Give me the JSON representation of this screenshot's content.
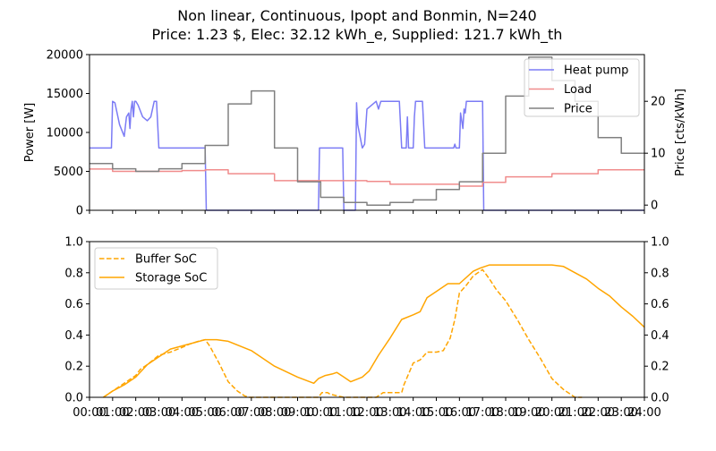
{
  "figure": {
    "title_line1": "Non linear, Continuous, Ipopt and Bonmin, N=240",
    "title_line2": "Price: 1.23 $, Elec: 32.12 kWh_e, Supplied: 121.7 kWh_th"
  },
  "colors": {
    "heat_pump": "#7b7bf5",
    "load": "#f08c8c",
    "price": "#808080",
    "soc": "#ffa500"
  },
  "chart_data": [
    {
      "type": "line",
      "ylabel": "Power [W]",
      "y2label": "Price [cts/kWh]",
      "ylim": [
        0,
        20000
      ],
      "yticks": [
        0,
        5000,
        10000,
        15000,
        20000
      ],
      "y2lim": [
        -1,
        29
      ],
      "y2ticks": [
        0,
        10,
        20
      ],
      "legend_position": "top-right",
      "series": [
        {
          "name": "Heat pump",
          "axis": "left",
          "x": [
            0,
            0.95,
            1.0,
            1.1,
            1.3,
            1.5,
            1.6,
            1.7,
            1.75,
            1.8,
            1.85,
            1.9,
            1.95,
            2.0,
            2.1,
            2.3,
            2.5,
            2.65,
            2.8,
            2.9,
            3.0,
            3.05,
            3.1,
            3.15,
            3.2,
            3.25,
            3.3,
            3.35,
            3.4,
            3.45,
            3.5,
            5.0,
            5.05,
            7.0,
            9.9,
            9.95,
            10.0,
            10.95,
            11.0,
            11.1,
            11.15,
            11.2,
            11.3,
            11.4,
            11.5,
            11.55,
            11.6,
            11.8,
            11.9,
            12.0,
            12.4,
            12.5,
            12.6,
            13.0,
            13.4,
            13.5,
            13.6,
            13.65,
            13.7,
            13.75,
            13.8,
            14.0,
            14.05,
            14.1,
            14.15,
            14.2,
            14.25,
            14.3,
            14.35,
            14.4,
            14.5,
            14.6,
            14.65,
            14.7,
            14.8,
            15.0,
            15.3,
            15.5,
            15.6,
            15.7,
            15.75,
            15.8,
            15.85,
            15.9,
            15.95,
            16.0,
            16.05,
            16.1,
            16.15,
            16.2,
            16.25,
            16.3,
            16.4,
            16.6,
            16.9,
            17.0,
            17.05,
            24.0
          ],
          "y": [
            8000,
            8000,
            14000,
            13800,
            11000,
            9500,
            12000,
            12500,
            10500,
            13000,
            14000,
            12000,
            14000,
            14000,
            13500,
            12000,
            11500,
            12000,
            14000,
            14000,
            8000,
            8000,
            8000,
            8000,
            8000,
            8000,
            8000,
            8000,
            8000,
            8000,
            8000,
            8000,
            0,
            0,
            0,
            8000,
            8000,
            8000,
            0,
            0,
            0,
            0,
            0,
            0,
            0,
            13800,
            11000,
            8000,
            8500,
            13000,
            14000,
            13000,
            14000,
            14000,
            14000,
            8000,
            8000,
            8000,
            8000,
            12000,
            8000,
            8000,
            12000,
            14000,
            14000,
            14000,
            14000,
            14000,
            14000,
            14000,
            8000,
            8000,
            8000,
            8000,
            8000,
            8000,
            8000,
            8000,
            8000,
            8000,
            8000,
            8500,
            8000,
            8000,
            8000,
            8000,
            12500,
            11500,
            10500,
            13000,
            12500,
            14000,
            14000,
            14000,
            14000,
            14000,
            0,
            0
          ]
        },
        {
          "name": "Load",
          "axis": "left",
          "x": [
            0,
            1,
            1,
            4,
            4,
            5,
            5,
            6,
            6,
            8,
            8,
            12,
            12,
            13,
            13,
            16,
            16,
            17,
            17,
            18,
            18,
            20,
            20,
            22,
            22,
            24
          ],
          "y": [
            5300,
            5300,
            5000,
            5000,
            5100,
            5100,
            5200,
            5200,
            4700,
            4700,
            3800,
            3800,
            3700,
            3700,
            3350,
            3350,
            3100,
            3100,
            3600,
            3600,
            4300,
            4300,
            4700,
            4700,
            5200,
            5200
          ]
        },
        {
          "name": "Price",
          "axis": "right",
          "x": [
            0,
            1,
            1,
            2,
            2,
            3,
            3,
            4,
            4,
            5,
            5,
            6,
            6,
            7,
            7,
            8,
            8,
            9,
            9,
            10,
            10,
            11,
            11,
            12,
            12,
            13,
            13,
            14,
            14,
            15,
            15,
            16,
            16,
            17,
            17,
            18,
            18,
            19,
            19,
            20,
            20,
            21,
            21,
            22,
            22,
            23,
            23,
            24
          ],
          "y": [
            8,
            8,
            7,
            7,
            6.5,
            6.5,
            7,
            7,
            8,
            8,
            11.5,
            11.5,
            19.5,
            19.5,
            22,
            22,
            11,
            11,
            4.5,
            4.5,
            1.5,
            1.5,
            0.5,
            0.5,
            0,
            0,
            0.5,
            0.5,
            1,
            1,
            3,
            3,
            4.5,
            4.5,
            10,
            10,
            21,
            21,
            28.5,
            28.5,
            24,
            24,
            20,
            20,
            13,
            13,
            10,
            10
          ]
        }
      ]
    },
    {
      "type": "line",
      "xlabel": "",
      "ylim": [
        0,
        1
      ],
      "yticks": [
        "0.0",
        "0.2",
        "0.4",
        "0.6",
        "0.8",
        "1.0"
      ],
      "legend_position": "top-left",
      "x_tick_labels": [
        "00:00",
        "01:00",
        "02:00",
        "03:00",
        "04:00",
        "05:00",
        "06:00",
        "07:00",
        "08:00",
        "09:00",
        "10:00",
        "11:00",
        "12:00",
        "13:00",
        "14:00",
        "15:00",
        "16:00",
        "17:00",
        "18:00",
        "19:00",
        "20:00",
        "21:00",
        "22:00",
        "23:00",
        "24:00"
      ],
      "series": [
        {
          "name": "Buffer SoC",
          "style": "dashed",
          "x": [
            0.6,
            0.8,
            1.0,
            1.5,
            2.0,
            2.2,
            2.5,
            3.0,
            3.5,
            4.0,
            4.3,
            4.7,
            5.0,
            5.2,
            5.6,
            6.0,
            6.4,
            6.7,
            6.9,
            7.0,
            9.9,
            10.05,
            10.3,
            10.4,
            10.7,
            11.0,
            11.6,
            11.7,
            11.8,
            12.0,
            12.4,
            12.7,
            13.0,
            13.3,
            13.5,
            13.6,
            14.0,
            14.3,
            14.6,
            15.0,
            15.3,
            15.6,
            15.8,
            16.0,
            16.3,
            16.6,
            17.0,
            17.05,
            17.3,
            17.6,
            18.0,
            18.5,
            19.0,
            19.5,
            20.0,
            20.5,
            21.0,
            21.3
          ],
          "y": [
            0.0,
            0.02,
            0.04,
            0.09,
            0.14,
            0.18,
            0.21,
            0.27,
            0.29,
            0.32,
            0.34,
            0.36,
            0.37,
            0.33,
            0.22,
            0.1,
            0.04,
            0.01,
            0.0,
            0.0,
            0.0,
            0.03,
            0.03,
            0.02,
            0.01,
            0.0,
            0.0,
            0.0,
            0.0,
            0.0,
            0.0,
            0.03,
            0.03,
            0.03,
            0.03,
            0.08,
            0.22,
            0.24,
            0.29,
            0.29,
            0.3,
            0.38,
            0.5,
            0.67,
            0.72,
            0.78,
            0.82,
            0.81,
            0.76,
            0.69,
            0.62,
            0.5,
            0.37,
            0.25,
            0.12,
            0.05,
            0.0,
            0.0
          ]
        },
        {
          "name": "Storage SoC",
          "style": "solid",
          "x": [
            0.6,
            0.8,
            1.0,
            1.5,
            2.0,
            2.5,
            3.0,
            3.5,
            4.0,
            4.5,
            5.0,
            5.5,
            6.0,
            7.0,
            8.0,
            9.0,
            9.7,
            9.9,
            10.2,
            10.5,
            10.7,
            11.0,
            11.3,
            11.8,
            12.1,
            12.5,
            13.0,
            13.5,
            14.0,
            14.3,
            14.6,
            15.0,
            15.5,
            16.0,
            16.6,
            16.9,
            17.3,
            18.0,
            19.0,
            20.0,
            20.5,
            21.0,
            21.5,
            22.0,
            22.5,
            23.0,
            23.5,
            24.0
          ],
          "y": [
            0.0,
            0.02,
            0.04,
            0.08,
            0.13,
            0.21,
            0.26,
            0.31,
            0.33,
            0.35,
            0.37,
            0.37,
            0.36,
            0.3,
            0.2,
            0.13,
            0.09,
            0.12,
            0.14,
            0.15,
            0.16,
            0.13,
            0.1,
            0.13,
            0.17,
            0.27,
            0.38,
            0.5,
            0.53,
            0.55,
            0.64,
            0.68,
            0.73,
            0.73,
            0.81,
            0.83,
            0.85,
            0.85,
            0.85,
            0.85,
            0.84,
            0.8,
            0.76,
            0.7,
            0.65,
            0.58,
            0.52,
            0.45
          ]
        }
      ]
    }
  ]
}
